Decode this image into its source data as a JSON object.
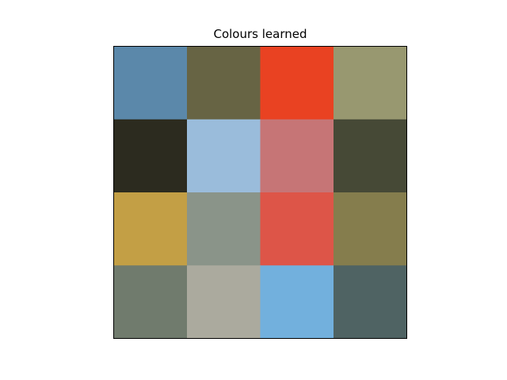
{
  "chart_data": {
    "type": "heatmap",
    "title": "Colours learned",
    "xlabel": "",
    "ylabel": "",
    "rows": 4,
    "cols": 4,
    "grid": false,
    "axes_ticks": false,
    "cells": [
      [
        "#5b88aa",
        "#676444",
        "#e94222",
        "#989870"
      ],
      [
        "#2c2b1f",
        "#9abcdb",
        "#c67576",
        "#464936"
      ],
      [
        "#c39f45",
        "#8a9489",
        "#dd5548",
        "#857d4d"
      ],
      [
        "#707b6d",
        "#abaa9e",
        "#72b0dd",
        "#4f6363"
      ]
    ]
  }
}
